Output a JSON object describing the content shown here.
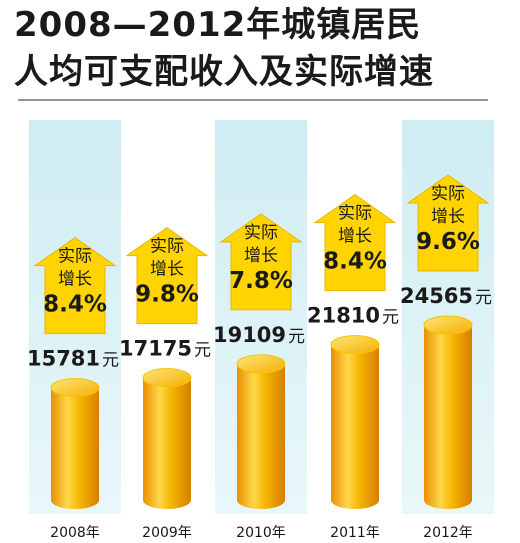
{
  "title_lines": [
    "2008—2012年城镇居民",
    "人均可支配收入及实际增速"
  ],
  "colors": {
    "coin_light": "#ffd23a",
    "coin_dark": "#e08a00",
    "arrow": "#ffd400",
    "band": "#d2eef3",
    "text": "#1a1a1a"
  },
  "chart_data": {
    "type": "bar",
    "title": "2008—2012年城镇居民人均可支配收入及实际增速",
    "categories": [
      "2008年",
      "2009年",
      "2010年",
      "2011年",
      "2012年"
    ],
    "series": [
      {
        "values": [
          15781,
          17175,
          19109,
          21810,
          24565
        ]
      }
    ],
    "value_unit": "元",
    "growth_label": [
      "实际",
      "增长"
    ],
    "growth": [
      "8.4%",
      "9.8%",
      "7.8%",
      "8.4%",
      "9.6%"
    ]
  }
}
